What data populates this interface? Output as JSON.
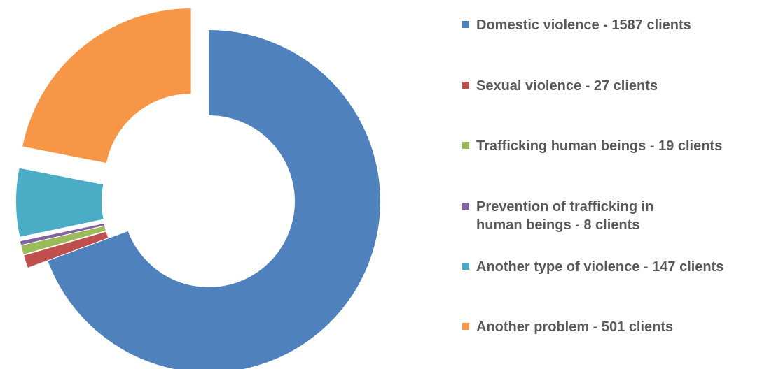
{
  "chart_data": {
    "type": "pie",
    "title": "",
    "style": "exploded donut",
    "legend_position": "right",
    "series": [
      {
        "label": "Domestic violence - 1587 clients",
        "value": 1587,
        "color": "#4F81BD"
      },
      {
        "label": "Sexual violence - 27 clients",
        "value": 27,
        "color": "#C0504D"
      },
      {
        "label": "Trafficking human beings - 19 clients",
        "value": 19,
        "color": "#9BBB59"
      },
      {
        "label": "Prevention of trafficking in human beings - 8 clients",
        "value": 8,
        "color": "#8064A2"
      },
      {
        "label": "Another type of violence - 147 clients",
        "value": 147,
        "color": "#4BACC6"
      },
      {
        "label": "Another problem - 501 clients",
        "value": 501,
        "color": "#F79646"
      }
    ]
  }
}
